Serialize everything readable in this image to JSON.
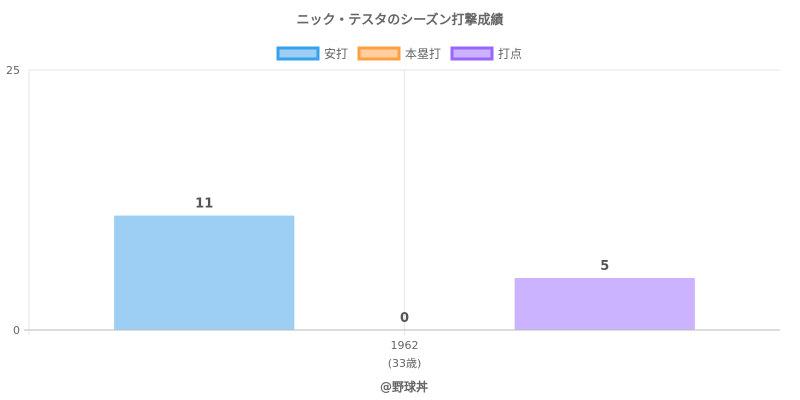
{
  "chart_data": {
    "type": "bar",
    "title": "ニック・テスタのシーズン打撃成績",
    "categories": [
      "1962"
    ],
    "category_sublabels": [
      "(33歳)"
    ],
    "series": [
      {
        "name": "安打",
        "values": [
          11
        ],
        "color": "#9dcff5",
        "border": "#36a2eb"
      },
      {
        "name": "本塁打",
        "values": [
          0
        ],
        "color": "#ffcf9f",
        "border": "#ff9f40"
      },
      {
        "name": "打点",
        "values": [
          5
        ],
        "color": "#ccb3ff",
        "border": "#9966ff"
      }
    ],
    "ylim": [
      0,
      25
    ],
    "yticks": [
      0,
      25
    ],
    "grid": true,
    "legend_position": "top"
  },
  "credit": "@野球丼"
}
